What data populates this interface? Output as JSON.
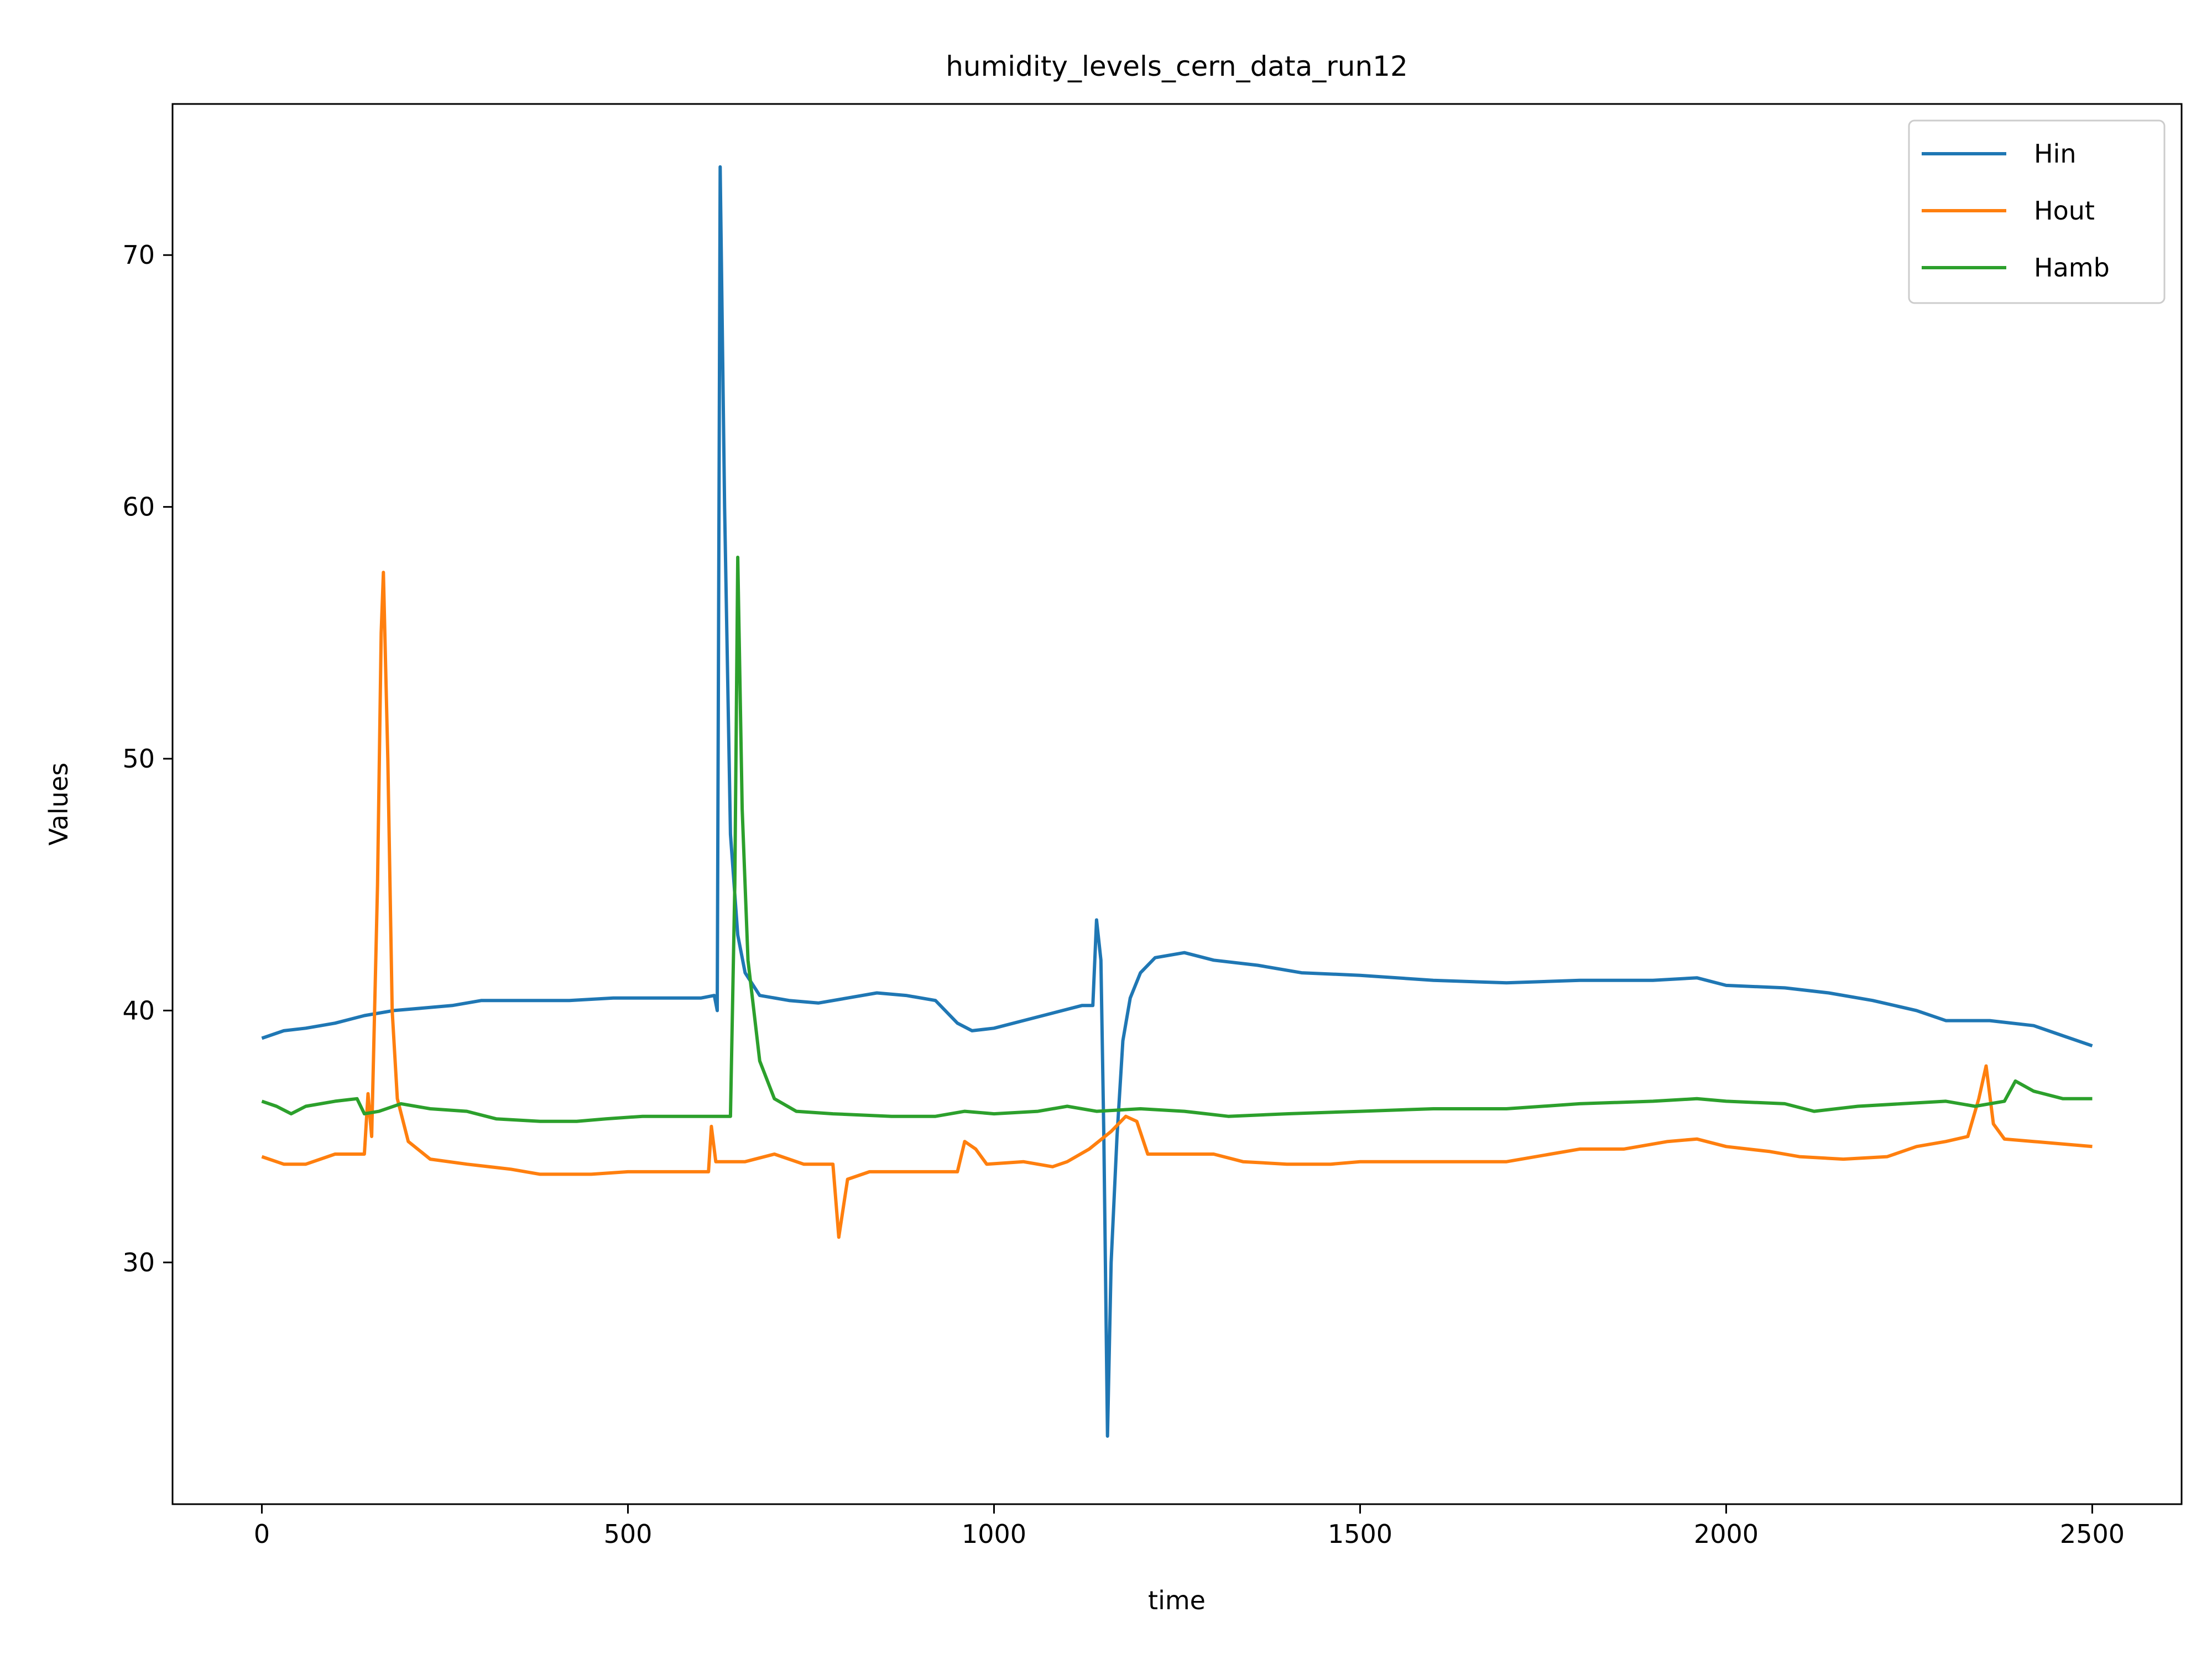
{
  "chart_data": {
    "type": "line",
    "title": "humidity_levels_cern_data_run12",
    "xlabel": "time",
    "ylabel": "Values",
    "xlim": [
      -122,
      2622
    ],
    "ylim": [
      20.4,
      76.0
    ],
    "xticks": [
      0,
      500,
      1000,
      1500,
      2000,
      2500
    ],
    "yticks": [
      30,
      40,
      50,
      60,
      70
    ],
    "xtick_labels": [
      "0",
      "500",
      "1000",
      "1500",
      "2000",
      "2500"
    ],
    "ytick_labels": [
      "30",
      "40",
      "50",
      "60",
      "70"
    ],
    "grid": false,
    "legend": "top-right",
    "series": [
      {
        "name": "Hin",
        "color": "#1f77b4",
        "points": [
          [
            0,
            38.9
          ],
          [
            30,
            39.2
          ],
          [
            60,
            39.3
          ],
          [
            100,
            39.5
          ],
          [
            140,
            39.8
          ],
          [
            180,
            40.0
          ],
          [
            220,
            40.1
          ],
          [
            260,
            40.2
          ],
          [
            300,
            40.4
          ],
          [
            360,
            40.4
          ],
          [
            420,
            40.4
          ],
          [
            480,
            40.5
          ],
          [
            540,
            40.5
          ],
          [
            600,
            40.5
          ],
          [
            618,
            40.6
          ],
          [
            622,
            40.0
          ],
          [
            626,
            73.5
          ],
          [
            632,
            60.0
          ],
          [
            640,
            47.0
          ],
          [
            650,
            43.0
          ],
          [
            660,
            41.5
          ],
          [
            680,
            40.6
          ],
          [
            720,
            40.4
          ],
          [
            760,
            40.3
          ],
          [
            800,
            40.5
          ],
          [
            840,
            40.7
          ],
          [
            880,
            40.6
          ],
          [
            920,
            40.4
          ],
          [
            950,
            39.5
          ],
          [
            970,
            39.2
          ],
          [
            1000,
            39.3
          ],
          [
            1040,
            39.6
          ],
          [
            1080,
            39.9
          ],
          [
            1120,
            40.2
          ],
          [
            1135,
            40.2
          ],
          [
            1140,
            43.6
          ],
          [
            1146,
            42.0
          ],
          [
            1150,
            35.0
          ],
          [
            1155,
            23.1
          ],
          [
            1160,
            30.0
          ],
          [
            1168,
            35.0
          ],
          [
            1176,
            38.8
          ],
          [
            1186,
            40.5
          ],
          [
            1200,
            41.5
          ],
          [
            1220,
            42.1
          ],
          [
            1260,
            42.3
          ],
          [
            1300,
            42.0
          ],
          [
            1360,
            41.8
          ],
          [
            1420,
            41.5
          ],
          [
            1500,
            41.4
          ],
          [
            1600,
            41.2
          ],
          [
            1700,
            41.1
          ],
          [
            1800,
            41.2
          ],
          [
            1900,
            41.2
          ],
          [
            1960,
            41.3
          ],
          [
            2000,
            41.0
          ],
          [
            2080,
            40.9
          ],
          [
            2140,
            40.7
          ],
          [
            2200,
            40.4
          ],
          [
            2260,
            40.0
          ],
          [
            2300,
            39.6
          ],
          [
            2360,
            39.6
          ],
          [
            2420,
            39.4
          ],
          [
            2460,
            39.0
          ],
          [
            2500,
            38.6
          ]
        ]
      },
      {
        "name": "Hout",
        "color": "#ff7f0e",
        "points": [
          [
            0,
            34.2
          ],
          [
            30,
            33.9
          ],
          [
            60,
            33.9
          ],
          [
            100,
            34.3
          ],
          [
            140,
            34.3
          ],
          [
            145,
            36.7
          ],
          [
            150,
            35.0
          ],
          [
            158,
            45.0
          ],
          [
            163,
            55.0
          ],
          [
            166,
            57.4
          ],
          [
            172,
            50.0
          ],
          [
            178,
            40.0
          ],
          [
            185,
            36.5
          ],
          [
            200,
            34.8
          ],
          [
            230,
            34.1
          ],
          [
            280,
            33.9
          ],
          [
            340,
            33.7
          ],
          [
            380,
            33.5
          ],
          [
            450,
            33.5
          ],
          [
            500,
            33.6
          ],
          [
            560,
            33.6
          ],
          [
            610,
            33.6
          ],
          [
            614,
            35.4
          ],
          [
            620,
            34.0
          ],
          [
            660,
            34.0
          ],
          [
            700,
            34.3
          ],
          [
            740,
            33.9
          ],
          [
            780,
            33.9
          ],
          [
            788,
            31.0
          ],
          [
            800,
            33.3
          ],
          [
            830,
            33.6
          ],
          [
            900,
            33.6
          ],
          [
            950,
            33.6
          ],
          [
            960,
            34.8
          ],
          [
            975,
            34.5
          ],
          [
            990,
            33.9
          ],
          [
            1040,
            34.0
          ],
          [
            1080,
            33.8
          ],
          [
            1100,
            34.0
          ],
          [
            1130,
            34.5
          ],
          [
            1160,
            35.2
          ],
          [
            1180,
            35.8
          ],
          [
            1195,
            35.6
          ],
          [
            1210,
            34.3
          ],
          [
            1250,
            34.3
          ],
          [
            1300,
            34.3
          ],
          [
            1340,
            34.0
          ],
          [
            1400,
            33.9
          ],
          [
            1460,
            33.9
          ],
          [
            1500,
            34.0
          ],
          [
            1600,
            34.0
          ],
          [
            1700,
            34.0
          ],
          [
            1760,
            34.3
          ],
          [
            1800,
            34.5
          ],
          [
            1860,
            34.5
          ],
          [
            1920,
            34.8
          ],
          [
            1960,
            34.9
          ],
          [
            2000,
            34.6
          ],
          [
            2060,
            34.4
          ],
          [
            2100,
            34.2
          ],
          [
            2160,
            34.1
          ],
          [
            2220,
            34.2
          ],
          [
            2260,
            34.6
          ],
          [
            2300,
            34.8
          ],
          [
            2330,
            35.0
          ],
          [
            2345,
            36.5
          ],
          [
            2355,
            37.8
          ],
          [
            2365,
            35.5
          ],
          [
            2380,
            34.9
          ],
          [
            2420,
            34.8
          ],
          [
            2460,
            34.7
          ],
          [
            2500,
            34.6
          ]
        ]
      },
      {
        "name": "Hamb",
        "color": "#2ca02c",
        "points": [
          [
            0,
            36.4
          ],
          [
            20,
            36.2
          ],
          [
            40,
            35.9
          ],
          [
            60,
            36.2
          ],
          [
            100,
            36.4
          ],
          [
            130,
            36.5
          ],
          [
            140,
            35.9
          ],
          [
            160,
            36.0
          ],
          [
            190,
            36.3
          ],
          [
            230,
            36.1
          ],
          [
            280,
            36.0
          ],
          [
            320,
            35.7
          ],
          [
            380,
            35.6
          ],
          [
            430,
            35.6
          ],
          [
            470,
            35.7
          ],
          [
            520,
            35.8
          ],
          [
            580,
            35.8
          ],
          [
            620,
            35.8
          ],
          [
            640,
            35.8
          ],
          [
            646,
            45.0
          ],
          [
            650,
            58.0
          ],
          [
            656,
            48.0
          ],
          [
            664,
            42.0
          ],
          [
            680,
            38.0
          ],
          [
            700,
            36.5
          ],
          [
            730,
            36.0
          ],
          [
            780,
            35.9
          ],
          [
            860,
            35.8
          ],
          [
            920,
            35.8
          ],
          [
            960,
            36.0
          ],
          [
            1000,
            35.9
          ],
          [
            1060,
            36.0
          ],
          [
            1100,
            36.2
          ],
          [
            1140,
            36.0
          ],
          [
            1200,
            36.1
          ],
          [
            1260,
            36.0
          ],
          [
            1320,
            35.8
          ],
          [
            1400,
            35.9
          ],
          [
            1500,
            36.0
          ],
          [
            1600,
            36.1
          ],
          [
            1700,
            36.1
          ],
          [
            1800,
            36.3
          ],
          [
            1900,
            36.4
          ],
          [
            1960,
            36.5
          ],
          [
            2000,
            36.4
          ],
          [
            2080,
            36.3
          ],
          [
            2120,
            36.0
          ],
          [
            2180,
            36.2
          ],
          [
            2240,
            36.3
          ],
          [
            2300,
            36.4
          ],
          [
            2340,
            36.2
          ],
          [
            2380,
            36.4
          ],
          [
            2395,
            37.2
          ],
          [
            2420,
            36.8
          ],
          [
            2460,
            36.5
          ],
          [
            2500,
            36.5
          ]
        ]
      }
    ]
  }
}
